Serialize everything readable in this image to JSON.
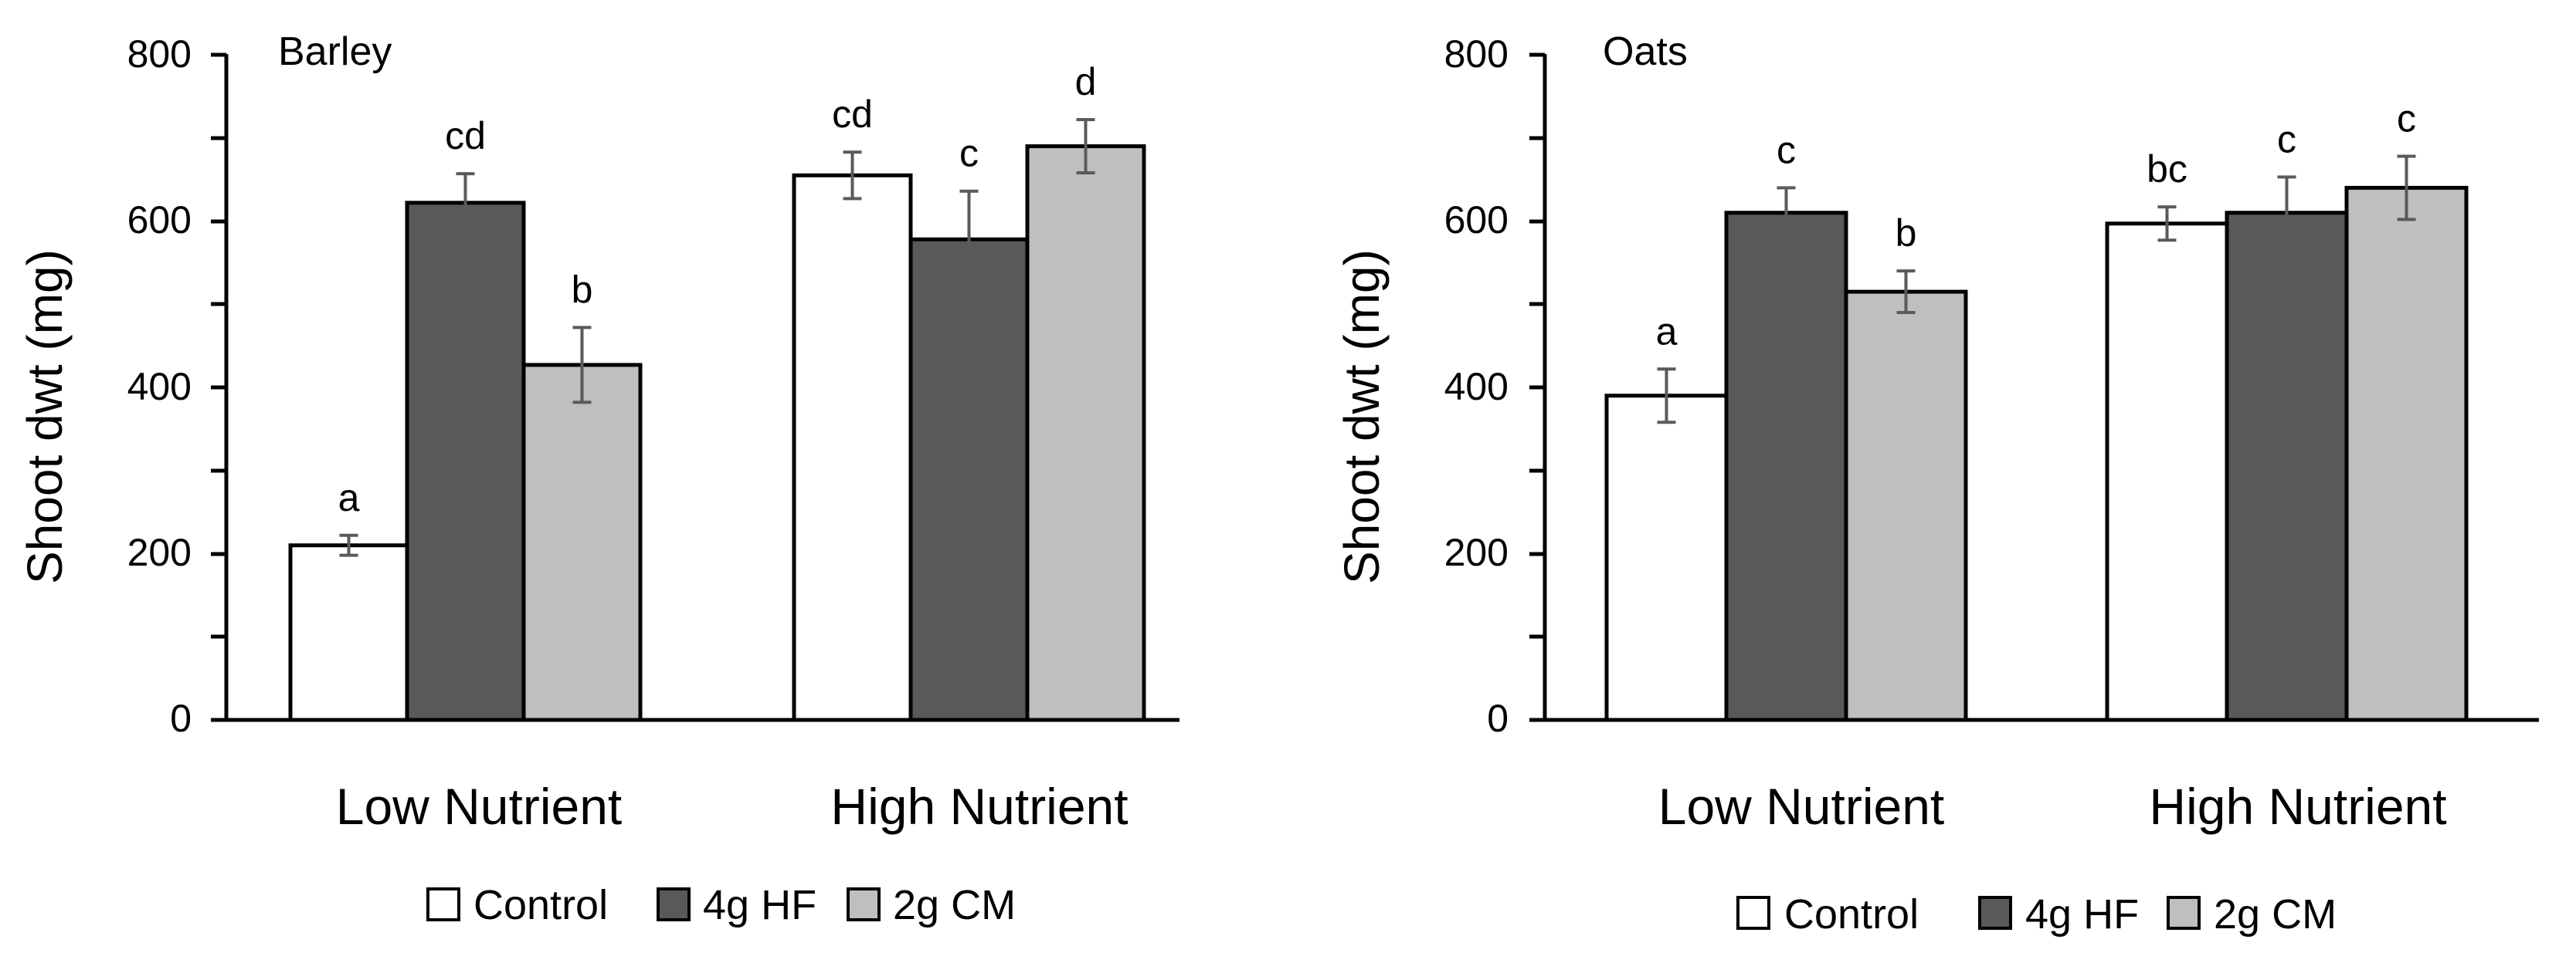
{
  "chart_data": [
    {
      "type": "bar",
      "title": "Barley",
      "ylabel": "Shoot dwt (mg)",
      "xlabel": "",
      "ylim": [
        0,
        800
      ],
      "yticks": [
        "0",
        "200",
        "400",
        "600",
        "800"
      ],
      "categories": [
        "Low Nutrient",
        "High Nutrient"
      ],
      "series": [
        {
          "name": "Control",
          "color": "#ffffff",
          "values": [
            210,
            655
          ],
          "errors": [
            12,
            28
          ],
          "letters": [
            "a",
            "cd"
          ]
        },
        {
          "name": "4g HF",
          "color": "#595959",
          "values": [
            622,
            578
          ],
          "errors": [
            35,
            58
          ],
          "letters": [
            "cd",
            "c"
          ]
        },
        {
          "name": "2g CM",
          "color": "#bfbfbf",
          "values": [
            427,
            690
          ],
          "errors": [
            45,
            32
          ],
          "letters": [
            "b",
            "d"
          ]
        }
      ],
      "legend": [
        "Control",
        "4g HF",
        "2g CM"
      ]
    },
    {
      "type": "bar",
      "title": "Oats",
      "ylabel": "Shoot dwt (mg)",
      "xlabel": "",
      "ylim": [
        0,
        800
      ],
      "yticks": [
        "0",
        "200",
        "400",
        "600",
        "800"
      ],
      "categories": [
        "Low Nutrient",
        "High Nutrient"
      ],
      "series": [
        {
          "name": "Control",
          "color": "#ffffff",
          "values": [
            390,
            597
          ],
          "errors": [
            32,
            20
          ],
          "letters": [
            "a",
            "bc"
          ]
        },
        {
          "name": "4g HF",
          "color": "#595959",
          "values": [
            610,
            610
          ],
          "errors": [
            30,
            43
          ],
          "letters": [
            "c",
            "c"
          ]
        },
        {
          "name": "2g CM",
          "color": "#bfbfbf",
          "values": [
            515,
            640
          ],
          "errors": [
            25,
            38
          ],
          "letters": [
            "b",
            "c"
          ]
        }
      ],
      "legend": [
        "Control",
        "4g HF",
        "2g CM"
      ]
    }
  ]
}
